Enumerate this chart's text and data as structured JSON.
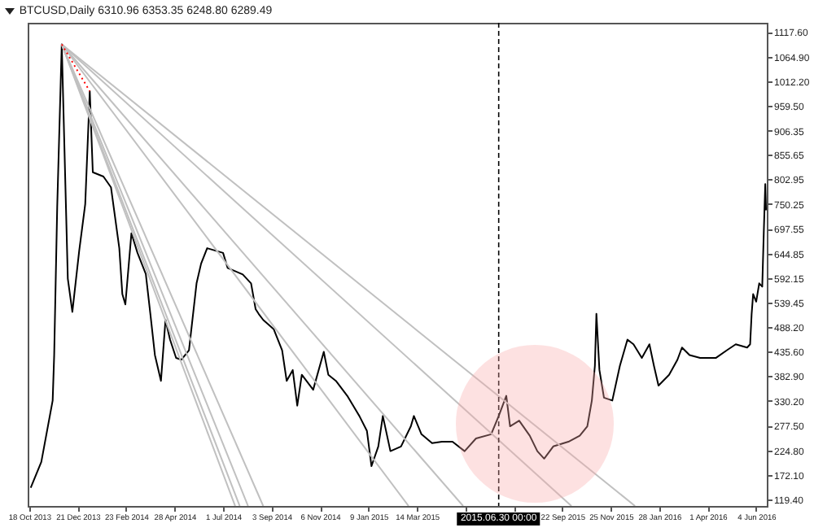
{
  "chart_data": {
    "type": "line",
    "title": "BTCUSD,Daily  6310.96 6353.35 6248.80 6289.49",
    "xlim": [
      "2013-10-16",
      "2016-06-18"
    ],
    "ylim": [
      106,
      1137
    ],
    "xticks": [
      {
        "value": "2013-10-18",
        "label": "18 Oct 2013"
      },
      {
        "value": "2013-12-21",
        "label": "21 Dec 2013"
      },
      {
        "value": "2014-02-23",
        "label": "23 Feb 2014"
      },
      {
        "value": "2014-04-28",
        "label": "28 Apr 2014"
      },
      {
        "value": "2014-07-01",
        "label": "1 Jul 2014"
      },
      {
        "value": "2014-09-03",
        "label": "3 Sep 2014"
      },
      {
        "value": "2014-11-06",
        "label": "6 Nov 2014"
      },
      {
        "value": "2015-01-09",
        "label": "9 Jan 2015"
      },
      {
        "value": "2015-03-14",
        "label": "14 Mar 2015"
      },
      {
        "value": "2015-05-17",
        "label": null
      },
      {
        "value": "2015-07-20",
        "label": null
      },
      {
        "value": "2015-09-22",
        "label": "22 Sep 2015"
      },
      {
        "value": "2015-11-25",
        "label": "25 Nov 2015"
      },
      {
        "value": "2016-01-28",
        "label": "28 Jan 2016"
      },
      {
        "value": "2016-04-01",
        "label": "1 Apr 2016"
      },
      {
        "value": "2016-06-04",
        "label": "4 Jun 2016"
      }
    ],
    "yticks": [
      {
        "value": 1117.6,
        "label": "1117.60"
      },
      {
        "value": 1064.9,
        "label": "1064.90"
      },
      {
        "value": 1012.2,
        "label": "1012.20"
      },
      {
        "value": 959.5,
        "label": "959.50"
      },
      {
        "value": 906.35,
        "label": "906.35"
      },
      {
        "value": 855.65,
        "label": "855.65"
      },
      {
        "value": 802.95,
        "label": "802.95"
      },
      {
        "value": 750.25,
        "label": "750.25"
      },
      {
        "value": 697.55,
        "label": "697.55"
      },
      {
        "value": 644.85,
        "label": "644.85"
      },
      {
        "value": 592.15,
        "label": "592.15"
      },
      {
        "value": 539.45,
        "label": "539.45"
      },
      {
        "value": 488.2,
        "label": "488.20"
      },
      {
        "value": 435.6,
        "label": "435.60"
      },
      {
        "value": 382.9,
        "label": "382.90"
      },
      {
        "value": 330.2,
        "label": "330.20"
      },
      {
        "value": 277.5,
        "label": "277.50"
      },
      {
        "value": 224.8,
        "label": "224.80"
      },
      {
        "value": 172.1,
        "label": "172.10"
      },
      {
        "value": 119.4,
        "label": "119.40"
      }
    ],
    "series": [
      {
        "color": "#000000",
        "x": [
          "2013-10-20",
          "2013-11-03",
          "2013-11-18",
          "2013-11-20",
          "2013-11-24",
          "2013-11-30",
          "2013-12-08",
          "2013-12-14",
          "2013-12-23",
          "2013-12-31",
          "2014-01-06",
          "2014-01-10",
          "2014-01-24",
          "2014-02-03",
          "2014-02-14",
          "2014-02-18",
          "2014-02-22",
          "2014-03-02",
          "2014-03-10",
          "2014-03-21",
          "2014-03-27",
          "2014-04-02",
          "2014-04-10",
          "2014-04-16",
          "2014-04-22",
          "2014-04-30",
          "2014-05-07",
          "2014-05-17",
          "2014-05-27",
          "2014-06-02",
          "2014-06-10",
          "2014-07-01",
          "2014-07-07",
          "2014-07-27",
          "2014-08-07",
          "2014-08-13",
          "2014-08-17",
          "2014-08-23",
          "2014-09-06",
          "2014-09-17",
          "2014-09-23",
          "2014-10-01",
          "2014-10-07",
          "2014-10-13",
          "2014-10-28",
          "2014-11-11",
          "2014-11-17",
          "2014-11-27",
          "2014-12-12",
          "2014-12-28",
          "2015-01-07",
          "2015-01-13",
          "2015-01-22",
          "2015-01-28",
          "2015-02-07",
          "2015-02-21",
          "2015-03-06",
          "2015-03-10",
          "2015-03-20",
          "2015-04-03",
          "2015-04-16",
          "2015-04-30",
          "2015-05-16",
          "2015-05-31",
          "2015-06-20",
          "2015-06-30",
          "2015-07-10",
          "2015-07-15",
          "2015-07-27",
          "2015-08-10",
          "2015-08-20",
          "2015-08-29",
          "2015-09-10",
          "2015-09-30",
          "2015-10-15",
          "2015-10-25",
          "2015-10-31",
          "2015-11-04",
          "2015-11-06",
          "2015-11-10",
          "2015-11-16",
          "2015-11-27",
          "2015-12-07",
          "2015-12-17",
          "2015-12-25",
          "2016-01-05",
          "2016-01-15",
          "2016-01-21",
          "2016-01-27",
          "2016-02-10",
          "2016-02-21",
          "2016-02-27",
          "2016-03-08",
          "2016-03-22",
          "2016-04-12",
          "2016-04-26",
          "2016-05-08",
          "2016-05-23",
          "2016-05-27",
          "2016-05-29",
          "2016-05-31",
          "2016-06-04",
          "2016-06-08",
          "2016-06-12",
          "2016-06-14",
          "2016-06-16",
          "2016-06-17"
        ],
        "values": [
          145,
          200,
          331,
          428,
          744,
          1091,
          591,
          520,
          650,
          750,
          991,
          818,
          809,
          786,
          656,
          558,
          536,
          688,
          646,
          601,
          516,
          428,
          373,
          503,
          461,
          422,
          418,
          438,
          581,
          623,
          656,
          646,
          614,
          600,
          581,
          526,
          516,
          503,
          483,
          438,
          373,
          396,
          320,
          386,
          354,
          435,
          386,
          373,
          341,
          298,
          266,
          191,
          233,
          298,
          223,
          233,
          276,
          298,
          259,
          240,
          243,
          243,
          223,
          250,
          259,
          298,
          341,
          276,
          288,
          256,
          223,
          207,
          233,
          243,
          256,
          276,
          331,
          405,
          516,
          396,
          337,
          331,
          405,
          461,
          451,
          422,
          451,
          405,
          363,
          386,
          418,
          444,
          428,
          422,
          422,
          438,
          451,
          444,
          451,
          516,
          558,
          542,
          581,
          574,
          688,
          793,
          737
        ]
      },
      {
        "color": "#c0c0c0",
        "x": [
          "2013-11-30",
          "2014-07-17"
        ],
        "values": [
          1091,
          106
        ]
      },
      {
        "color": "#c0c0c0",
        "x": [
          "2013-11-30",
          "2014-07-23"
        ],
        "values": [
          1091,
          106
        ]
      },
      {
        "color": "#c0c0c0",
        "x": [
          "2013-11-30",
          "2014-08-03"
        ],
        "values": [
          1091,
          106
        ]
      },
      {
        "color": "#c0c0c0",
        "x": [
          "2013-11-30",
          "2014-08-23"
        ],
        "values": [
          1091,
          106
        ]
      },
      {
        "color": "#c0c0c0",
        "x": [
          "2013-11-30",
          "2015-03-03"
        ],
        "values": [
          1091,
          106
        ]
      },
      {
        "color": "#c0c0c0",
        "x": [
          "2013-11-30",
          "2015-05-14"
        ],
        "values": [
          1091,
          106
        ]
      },
      {
        "color": "#c0c0c0",
        "x": [
          "2013-11-30",
          "2015-10-04"
        ],
        "values": [
          1091,
          106
        ]
      },
      {
        "color": "#c0c0c0",
        "x": [
          "2013-11-30",
          "2015-12-27"
        ],
        "values": [
          1091,
          106
        ]
      },
      {
        "color": "#ff0000",
        "line_style": "dotted",
        "x": [
          "2013-11-30",
          "2014-01-06"
        ],
        "values": [
          1091,
          991
        ]
      }
    ],
    "ref_lines": [
      {
        "axis": "x",
        "value": "2015-06-30",
        "label": "2015.06.30 00:00",
        "color": "#000000",
        "line_style": "dashed"
      }
    ]
  }
}
